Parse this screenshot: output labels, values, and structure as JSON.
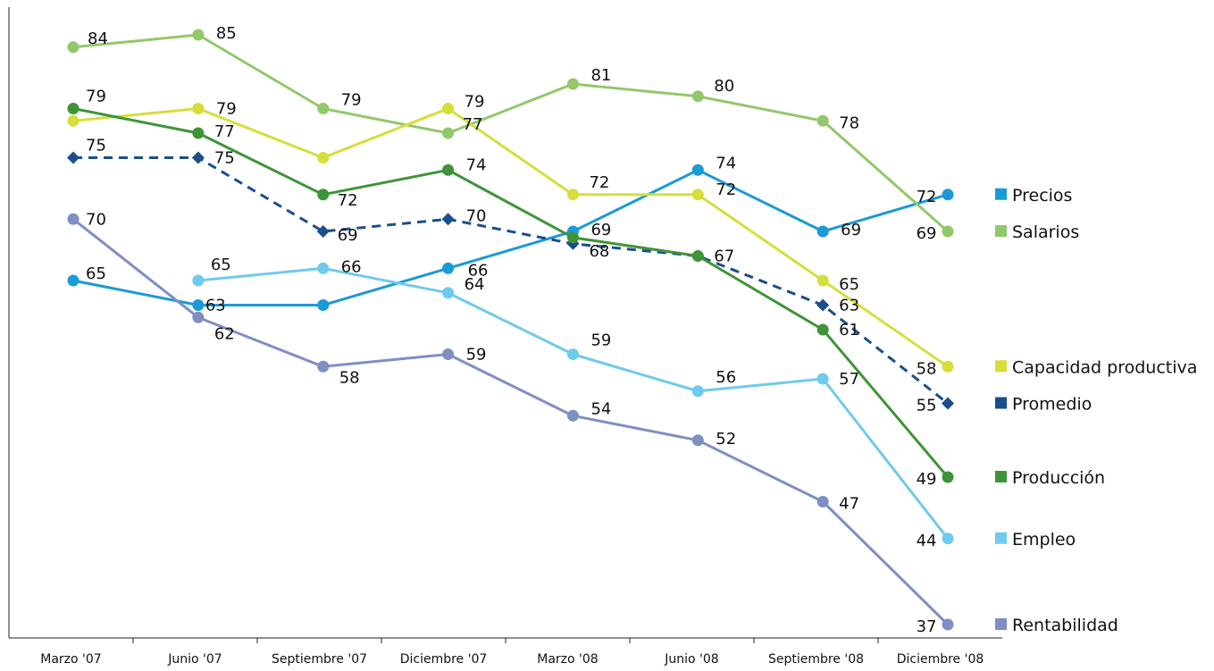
{
  "chart_data": {
    "type": "line",
    "categories": [
      "Marzo '07",
      "Junio '07",
      "Septiembre '07",
      "Diciembre '07",
      "Marzo '08",
      "Junio '08",
      "Septiembre '08",
      "Diciembre '08"
    ],
    "ylim": [
      35,
      87
    ],
    "grid": false,
    "legend_position": "right",
    "series": [
      {
        "name": "Precios",
        "values": [
          65,
          63,
          63,
          66,
          69,
          74,
          69,
          72
        ],
        "color": "#1a9ad6",
        "marker": "circle",
        "dashed": false
      },
      {
        "name": "Salarios",
        "values": [
          84,
          85,
          79,
          77,
          81,
          80,
          78,
          69
        ],
        "color": "#92c86a",
        "marker": "circle",
        "dashed": false
      },
      {
        "name": "Capacidad productiva",
        "values": [
          78,
          79,
          75,
          79,
          72,
          72,
          65,
          58
        ],
        "color": "#d6de3a",
        "marker": "circle",
        "dashed": false
      },
      {
        "name": "Promedio",
        "values": [
          75,
          75,
          69,
          70,
          68,
          67,
          63,
          55
        ],
        "color": "#1b4e8c",
        "marker": "diamond",
        "dashed": true
      },
      {
        "name": "Producción",
        "values": [
          79,
          77,
          72,
          74,
          68.5,
          67,
          61,
          49
        ],
        "color": "#3f9438",
        "marker": "circle",
        "dashed": false
      },
      {
        "name": "Empleo",
        "values": [
          null,
          65,
          66,
          64,
          59,
          56,
          57,
          44
        ],
        "color": "#6fcaee",
        "marker": "circle",
        "dashed": false
      },
      {
        "name": "Rentabilidad",
        "values": [
          70,
          62,
          58,
          59,
          54,
          52,
          47,
          37
        ],
        "color": "#7f8fc4",
        "marker": "circle",
        "dashed": false
      }
    ],
    "data_labels": [
      {
        "series": "Precios",
        "index": 0,
        "text": "65"
      },
      {
        "series": "Precios",
        "index": 1,
        "text": "63"
      },
      {
        "series": "Precios",
        "index": 3,
        "text": "66"
      },
      {
        "series": "Precios",
        "index": 4,
        "text": "69"
      },
      {
        "series": "Precios",
        "index": 5,
        "text": "74"
      },
      {
        "series": "Precios",
        "index": 6,
        "text": "69"
      },
      {
        "series": "Precios",
        "index": 7,
        "text": "72"
      },
      {
        "series": "Salarios",
        "index": 0,
        "text": "84"
      },
      {
        "series": "Salarios",
        "index": 1,
        "text": "85"
      },
      {
        "series": "Salarios",
        "index": 2,
        "text": "79"
      },
      {
        "series": "Salarios",
        "index": 3,
        "text": "77"
      },
      {
        "series": "Salarios",
        "index": 4,
        "text": "81"
      },
      {
        "series": "Salarios",
        "index": 5,
        "text": "80"
      },
      {
        "series": "Salarios",
        "index": 6,
        "text": "78"
      },
      {
        "series": "Salarios",
        "index": 7,
        "text": "69"
      },
      {
        "series": "Capacidad productiva",
        "index": 1,
        "text": "79"
      },
      {
        "series": "Capacidad productiva",
        "index": 3,
        "text": "79"
      },
      {
        "series": "Capacidad productiva",
        "index": 4,
        "text": "72"
      },
      {
        "series": "Capacidad productiva",
        "index": 5,
        "text": "72"
      },
      {
        "series": "Capacidad productiva",
        "index": 6,
        "text": "65"
      },
      {
        "series": "Capacidad productiva",
        "index": 7,
        "text": "58"
      },
      {
        "series": "Promedio",
        "index": 0,
        "text": "75"
      },
      {
        "series": "Promedio",
        "index": 1,
        "text": "75"
      },
      {
        "series": "Promedio",
        "index": 2,
        "text": "69"
      },
      {
        "series": "Promedio",
        "index": 3,
        "text": "70"
      },
      {
        "series": "Promedio",
        "index": 4,
        "text": "68"
      },
      {
        "series": "Promedio",
        "index": 5,
        "text": "67"
      },
      {
        "series": "Promedio",
        "index": 6,
        "text": "63"
      },
      {
        "series": "Promedio",
        "index": 7,
        "text": "55"
      },
      {
        "series": "Producción",
        "index": 0,
        "text": "79"
      },
      {
        "series": "Producción",
        "index": 1,
        "text": "77"
      },
      {
        "series": "Producción",
        "index": 2,
        "text": "72"
      },
      {
        "series": "Producción",
        "index": 3,
        "text": "74"
      },
      {
        "series": "Producción",
        "index": 6,
        "text": "61"
      },
      {
        "series": "Producción",
        "index": 7,
        "text": "49"
      },
      {
        "series": "Empleo",
        "index": 1,
        "text": "65"
      },
      {
        "series": "Empleo",
        "index": 2,
        "text": "66"
      },
      {
        "series": "Empleo",
        "index": 3,
        "text": "64"
      },
      {
        "series": "Empleo",
        "index": 4,
        "text": "59"
      },
      {
        "series": "Empleo",
        "index": 5,
        "text": "56"
      },
      {
        "series": "Empleo",
        "index": 6,
        "text": "57"
      },
      {
        "series": "Empleo",
        "index": 7,
        "text": "44"
      },
      {
        "series": "Rentabilidad",
        "index": 0,
        "text": "70"
      },
      {
        "series": "Rentabilidad",
        "index": 1,
        "text": "62"
      },
      {
        "series": "Rentabilidad",
        "index": 2,
        "text": "58"
      },
      {
        "series": "Rentabilidad",
        "index": 3,
        "text": "59"
      },
      {
        "series": "Rentabilidad",
        "index": 4,
        "text": "54"
      },
      {
        "series": "Rentabilidad",
        "index": 5,
        "text": "52"
      },
      {
        "series": "Rentabilidad",
        "index": 6,
        "text": "47"
      },
      {
        "series": "Rentabilidad",
        "index": 7,
        "text": "37"
      }
    ]
  }
}
